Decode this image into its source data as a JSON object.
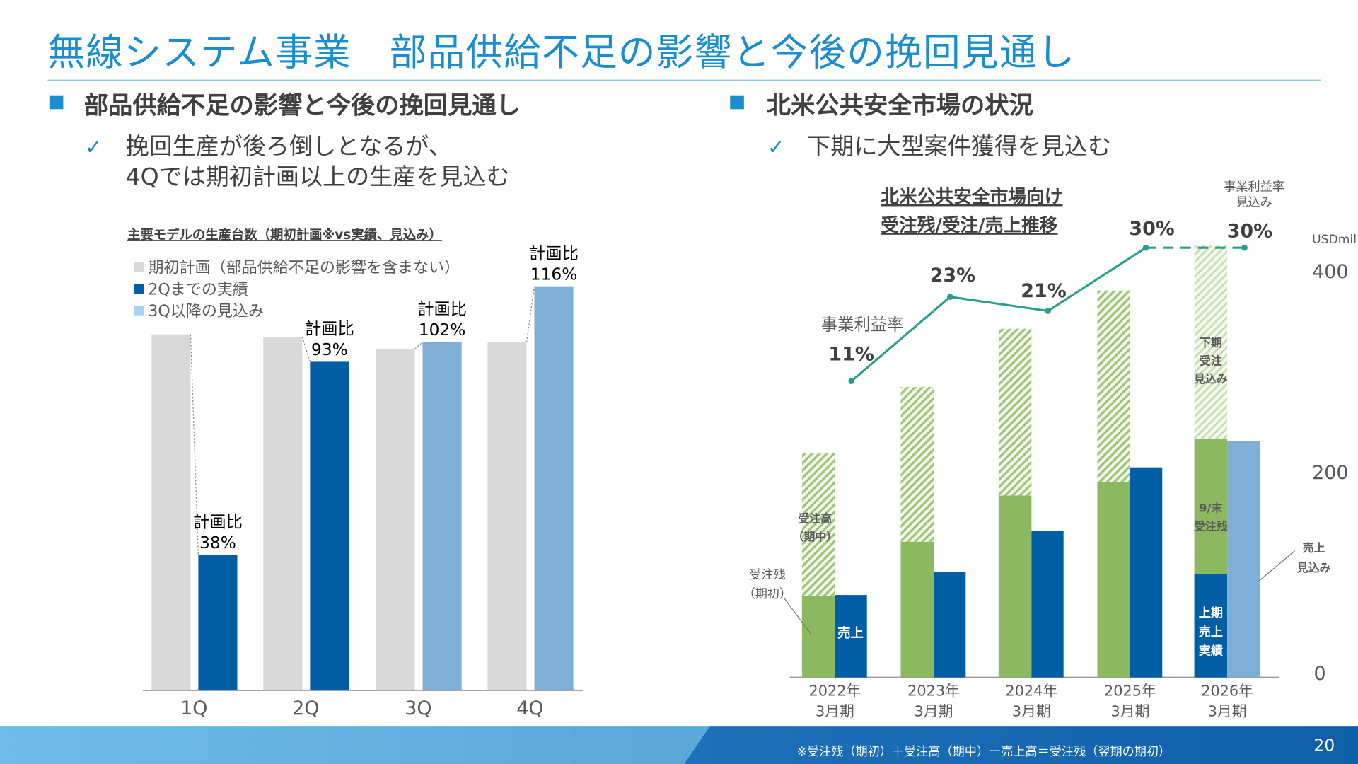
{
  "header": {
    "title": "無線システム事業　部品供給不足の影響と今後の挽回見通し"
  },
  "left": {
    "heading": "部品供給不足の影響と今後の挽回見通し",
    "bullet_lines": [
      "挽回生産が後ろ倒しとなるが、",
      "4Qでは期初計画以上の生産を見込む"
    ],
    "check_icon": "✓"
  },
  "right": {
    "heading": "北米公共安全市場の状況",
    "bullet": "下期に大型案件獲得を見込む",
    "check_icon": "✓"
  },
  "footer": {
    "note": "※受注残（期初）＋受注高（期中）ー売上高＝受注残（翌期の期初）",
    "page": "20"
  },
  "colors": {
    "accent": "#1a8dd0",
    "plan": "#d9d9d9",
    "actual": "#005ea5",
    "forecast": "#7fafd6",
    "backlog": "#8cb860",
    "margin_line": "#2a9d8f"
  },
  "chart_data": [
    {
      "type": "bar",
      "title": "主要モデルの生産台数（期初計画※vs実績、見込み）",
      "categories": [
        "1Q",
        "2Q",
        "3Q",
        "4Q"
      ],
      "legend": [
        "期初計画（部品供給不足の影響を含まない）",
        "2Qまでの実績",
        "3Q以降の見込み"
      ],
      "series": [
        {
          "name": "期初計画（部品供給不足の影響を含まない）",
          "values": [
            100,
            99.3,
            95.9,
            97.8
          ]
        },
        {
          "values": [
            38,
            92.3,
            97.8,
            113.5
          ],
          "kind": [
            "2Qまでの実績",
            "2Qまでの実績",
            "3Q以降の見込み",
            "3Q以降の見込み"
          ]
        }
      ],
      "ratio_prefix": "計画比",
      "ratios": [
        "38%",
        "93%",
        "102%",
        "116%"
      ],
      "legend_placement": "top-left",
      "grid": false
    },
    {
      "type": "bar",
      "title": [
        "北米公共安全市場向け",
        "受注残/受注/売上推移"
      ],
      "unit": "USDmil",
      "categories": [
        [
          "2022年",
          "3月期"
        ],
        [
          "2023年",
          "3月期"
        ],
        [
          "2024年",
          "3月期"
        ],
        [
          "2025年",
          "3月期"
        ],
        [
          "2026年",
          "3月期"
        ]
      ],
      "yticks": [
        "0",
        "200",
        "400"
      ],
      "ylim": [
        0,
        430
      ],
      "series": [
        {
          "name": "受注残（期初）",
          "values": [
            81,
            135,
            181,
            194,
            null
          ]
        },
        {
          "name": "受注高（期中）",
          "values": [
            142,
            154,
            166,
            191,
            null
          ]
        },
        {
          "name": "売上",
          "values": [
            82,
            105,
            146,
            209,
            null
          ]
        }
      ],
      "fy2026": {
        "h1_sales": 103,
        "backlog_sep": 134,
        "h2_orders_forecast": 193,
        "sales_forecast": 235
      },
      "margin": {
        "name": "事業利益率",
        "values": [
          11,
          23,
          21,
          30,
          30
        ],
        "labels": [
          "11%",
          "23%",
          "21%",
          "30%",
          "30%"
        ],
        "forecast_label": [
          "事業利益率",
          "見込み"
        ]
      },
      "annotations": {
        "orders": [
          "受注高",
          "（期中）"
        ],
        "backlog": [
          "受注残",
          "（期初）"
        ],
        "sales": "売上",
        "h2_orders": [
          "下期",
          "受注",
          "見込み"
        ],
        "backlog_sep": [
          "9/末",
          "受注残"
        ],
        "h1_sales": [
          "上期",
          "売上",
          "実績"
        ],
        "sales_forecast": [
          "売上",
          "見込み"
        ]
      },
      "grid": false
    }
  ]
}
